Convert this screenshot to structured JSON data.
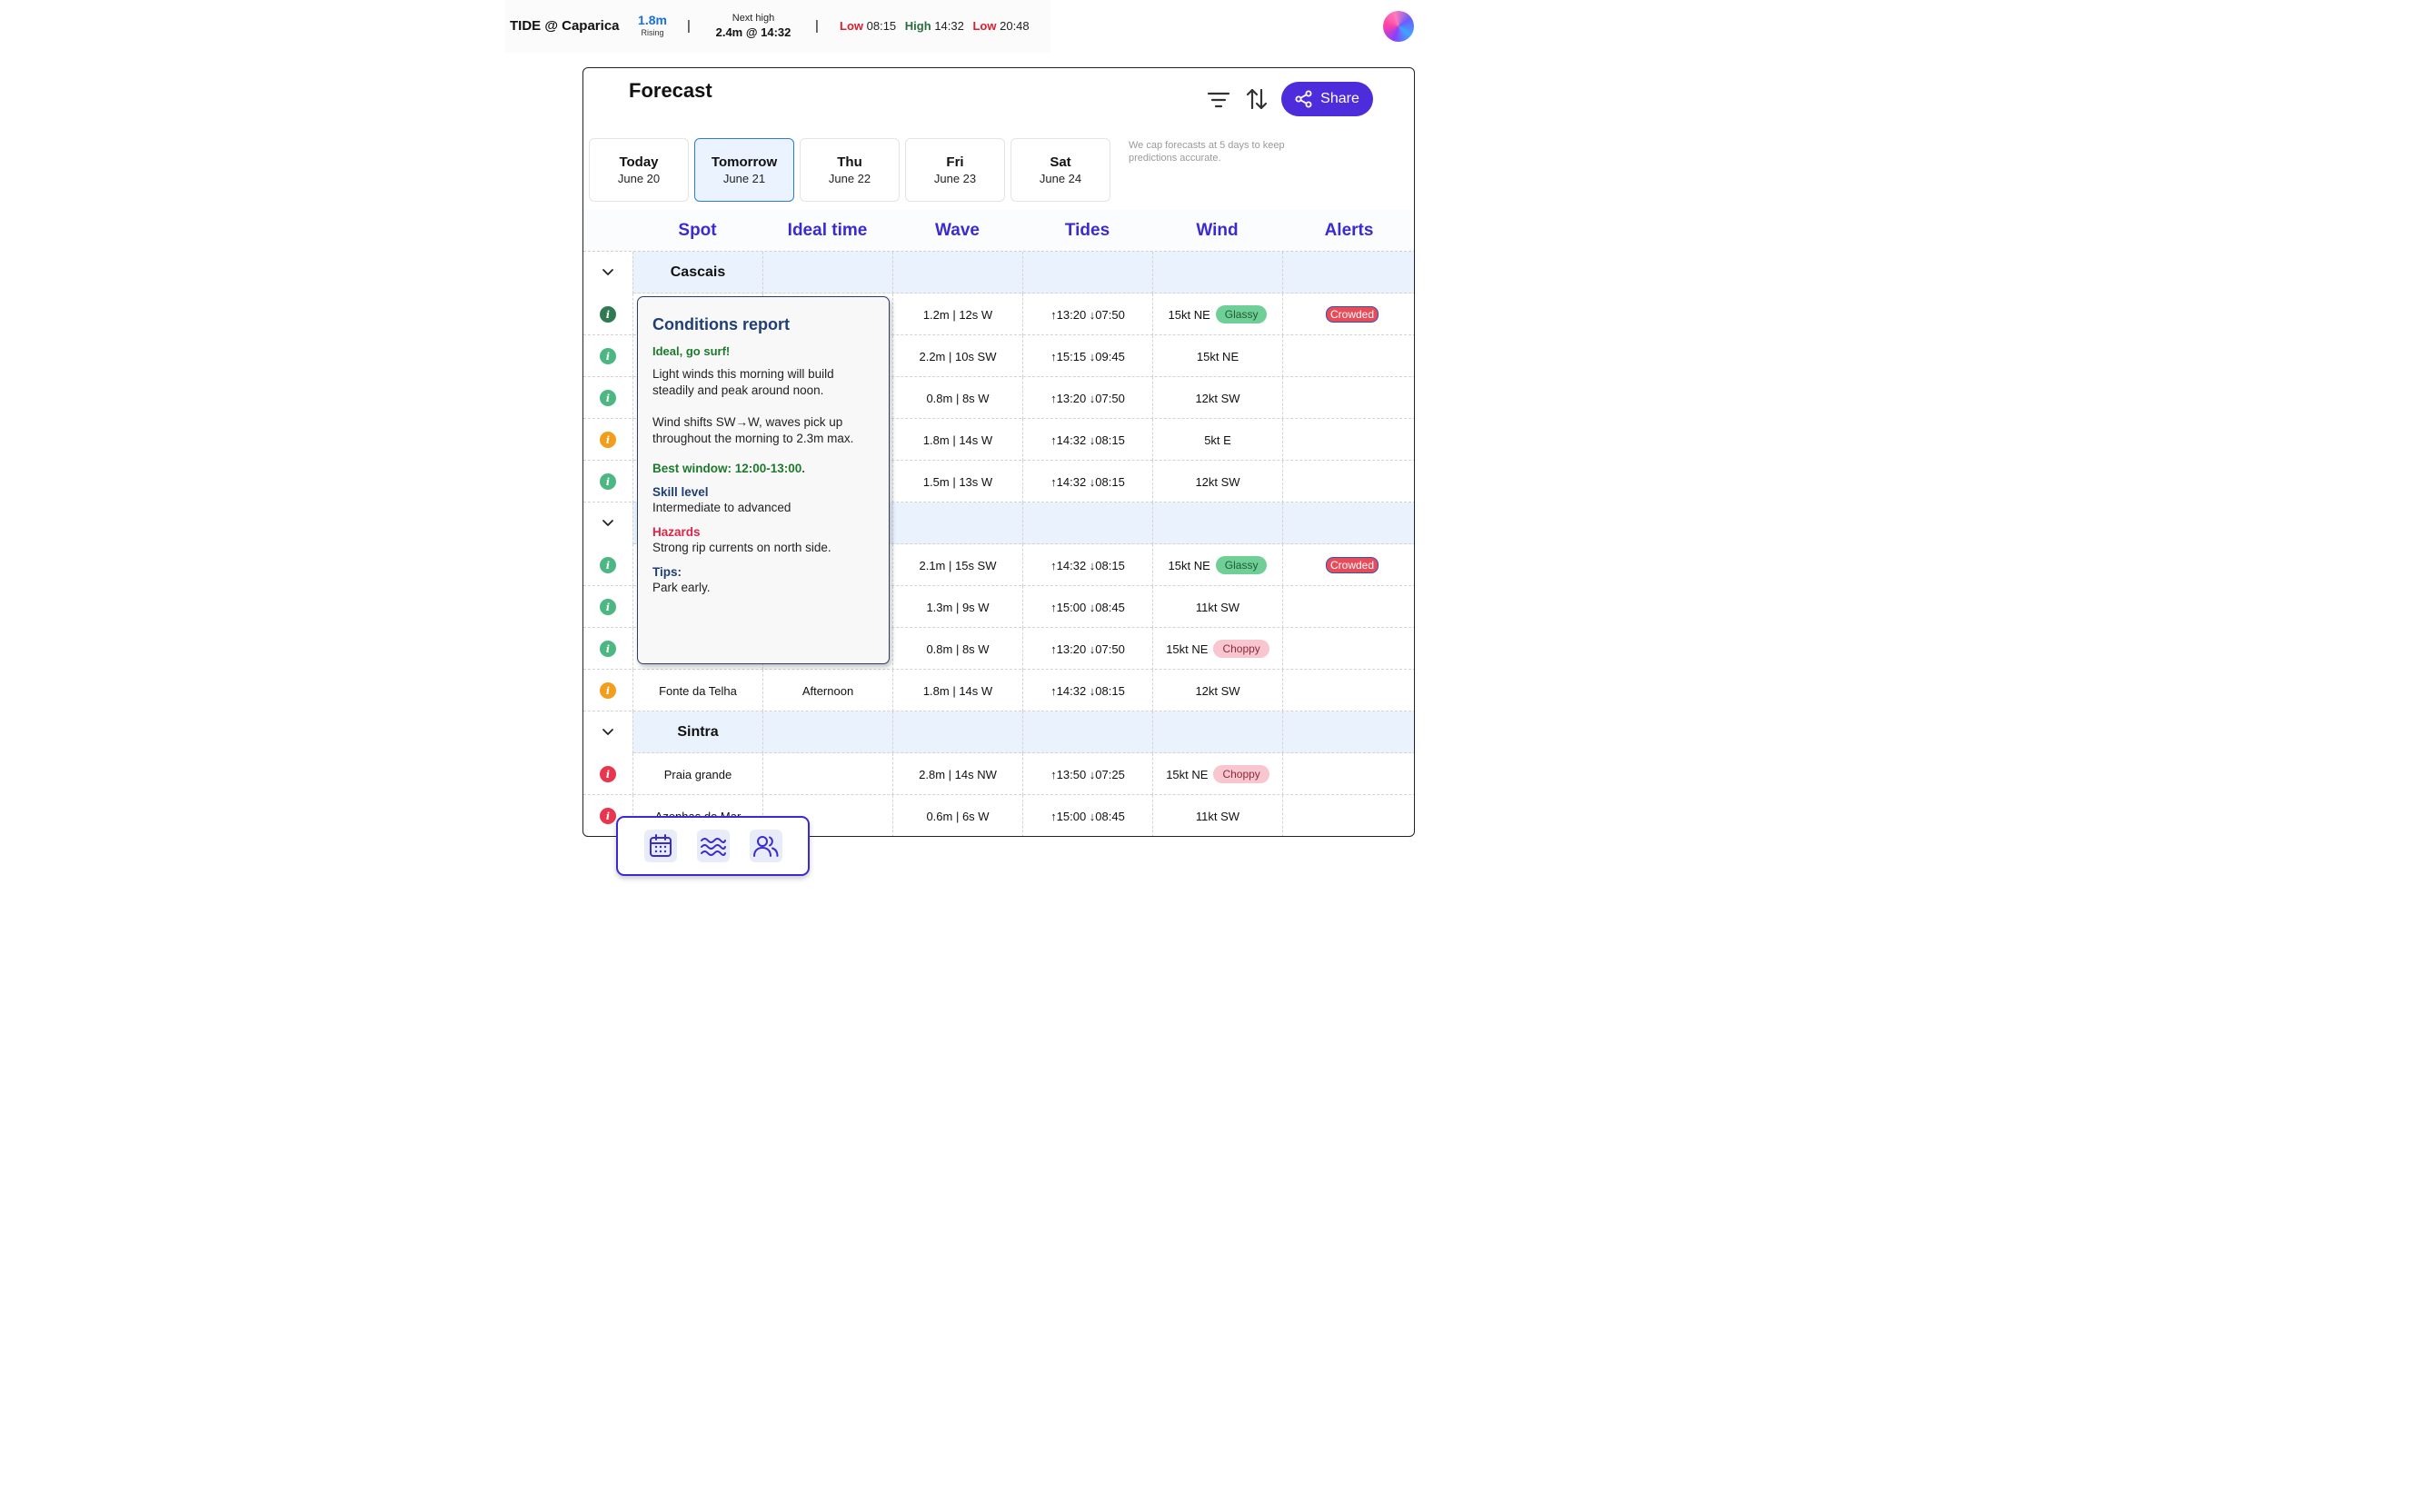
{
  "tide": {
    "title": "TIDE @ Caparica",
    "level": "1.8m",
    "trend": "Rising",
    "sep": "|",
    "next_high_label": "Next high",
    "next_high_value": "2.4m @ 14:32",
    "events": [
      {
        "label": "Low",
        "time": "08:15",
        "kind": "low"
      },
      {
        "label": "High",
        "time": "14:32",
        "kind": "high"
      },
      {
        "label": "Low",
        "time": "20:48",
        "kind": "low"
      }
    ]
  },
  "header": {
    "avatar_icon": "avatar",
    "title": "Forecast",
    "filter_icon": "filter-icon",
    "sort_icon": "sort-icon",
    "share_label": "Share"
  },
  "days": [
    {
      "name": "Today",
      "date": "June 20",
      "active": false
    },
    {
      "name": "Tomorrow",
      "date": "June 21",
      "active": true
    },
    {
      "name": "Thu",
      "date": "June 22",
      "active": false
    },
    {
      "name": "Fri",
      "date": "June 23",
      "active": false
    },
    {
      "name": "Sat",
      "date": "June 24",
      "active": false
    }
  ],
  "cap_note": "We cap forecasts at 5 days to keep predictions accurate.",
  "table": {
    "columns": [
      "Spot",
      "Ideal time",
      "Wave",
      "Tides",
      "Wind",
      "Alerts"
    ],
    "groups": [
      {
        "name": "Cascais",
        "show_name": true,
        "rows": [
          {
            "status": "#2f7a53",
            "spot": "",
            "ideal": "",
            "wave": "1.2m | 12s W",
            "tides": "↑13:20 ↓07:50",
            "wind": "15kt NE",
            "wind_badge": "Glassy",
            "alert": "Crowded"
          },
          {
            "status": "#4cb782",
            "spot": "",
            "ideal": "",
            "wave": "2.2m | 10s SW",
            "tides": "↑15:15 ↓09:45",
            "wind": "15kt NE",
            "wind_badge": "",
            "alert": ""
          },
          {
            "status": "#4cb782",
            "spot": "",
            "ideal": "",
            "wave": "0.8m | 8s W",
            "tides": "↑13:20 ↓07:50",
            "wind": "12kt SW",
            "wind_badge": "",
            "alert": ""
          },
          {
            "status": "#f29d1b",
            "spot": "",
            "ideal": "",
            "wave": "1.8m | 14s W",
            "tides": "↑14:32 ↓08:15",
            "wind": "5kt E",
            "wind_badge": "",
            "alert": ""
          },
          {
            "status": "#4cb782",
            "spot": "",
            "ideal": "",
            "wave": "1.5m | 13s W",
            "tides": "↑14:32 ↓08:15",
            "wind": "12kt SW",
            "wind_badge": "",
            "alert": ""
          }
        ]
      },
      {
        "name": "",
        "show_name": false,
        "rows": [
          {
            "status": "#4cb782",
            "spot": "",
            "ideal": "",
            "wave": "2.1m | 15s SW",
            "tides": "↑14:32 ↓08:15",
            "wind": "15kt NE",
            "wind_badge": "Glassy",
            "alert": "Crowded"
          },
          {
            "status": "#4cb782",
            "spot": "",
            "ideal": "",
            "wave": "1.3m | 9s W",
            "tides": "↑15:00 ↓08:45",
            "wind": "11kt SW",
            "wind_badge": "",
            "alert": ""
          },
          {
            "status": "#4cb782",
            "spot": "",
            "ideal": "",
            "wave": "0.8m | 8s W",
            "tides": "↑13:20 ↓07:50",
            "wind": "15kt NE",
            "wind_badge": "Choppy",
            "alert": ""
          },
          {
            "status": "#f29d1b",
            "spot": "Fonte da Telha",
            "ideal": "Afternoon",
            "wave": "1.8m | 14s W",
            "tides": "↑14:32 ↓08:15",
            "wind": "12kt SW",
            "wind_badge": "",
            "alert": ""
          }
        ]
      },
      {
        "name": "Sintra",
        "show_name": true,
        "rows": [
          {
            "status": "#e8364f",
            "spot": "Praia grande",
            "ideal": "",
            "wave": "2.8m | 14s NW",
            "tides": "↑13:50 ↓07:25",
            "wind": "15kt NE",
            "wind_badge": "Choppy",
            "alert": ""
          },
          {
            "status": "#e8364f",
            "spot": "Azenhas do Mar",
            "ideal": "",
            "wave": "0.6m | 6s W",
            "tides": "↑15:00 ↓08:45",
            "wind": "11kt SW",
            "wind_badge": "",
            "alert": ""
          }
        ]
      }
    ]
  },
  "popup": {
    "title": "Conditions report",
    "verdict": "Ideal, go surf!",
    "para1": "Light winds this morning will build steadily and peak around noon.",
    "para2": "Wind shifts SW→W, waves pick up throughout the morning to 2.3m max.",
    "best_window": "Best window: 12:00-13:00.",
    "skill_label": "Skill level",
    "skill_value": "Intermediate to advanced",
    "hazards_label": "Hazards",
    "hazards_value": "Strong rip currents on north side.",
    "tips_label": "Tips:",
    "tips_value": "Park early."
  },
  "bottom_nav": [
    {
      "icon": "calendar-icon"
    },
    {
      "icon": "waves-icon"
    },
    {
      "icon": "users-icon"
    }
  ]
}
